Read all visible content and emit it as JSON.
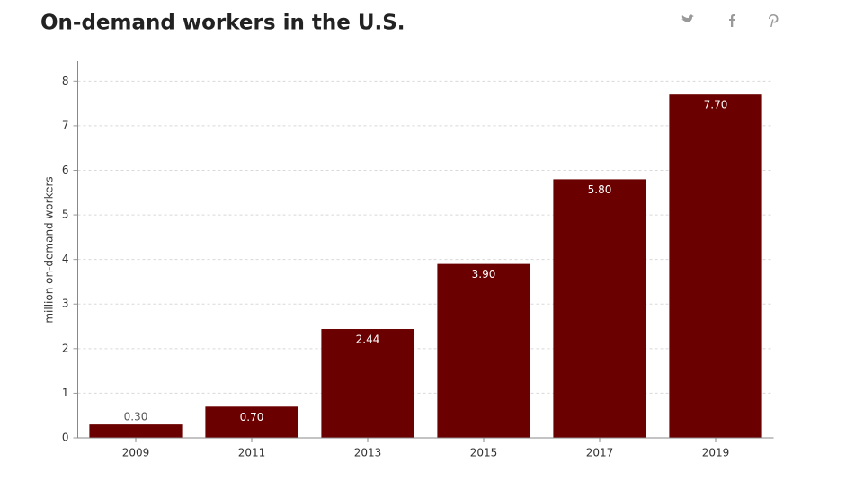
{
  "chart_data": {
    "type": "bar",
    "title": "On-demand workers in the U.S.",
    "y_label": "million on-demand workers",
    "categories": [
      "2009",
      "2011",
      "2013",
      "2015",
      "2017",
      "2019"
    ],
    "values": [
      0.3,
      0.7,
      2.44,
      3.9,
      5.8,
      7.7
    ],
    "value_labels": [
      "0.30",
      "0.70",
      "2.44",
      "3.90",
      "5.80",
      "7.70"
    ],
    "color": "#6b0000",
    "ylim": [
      0,
      8.45
    ],
    "yticks": [
      0,
      1,
      2,
      3,
      4,
      5,
      6,
      7,
      8
    ],
    "grid": true
  }
}
